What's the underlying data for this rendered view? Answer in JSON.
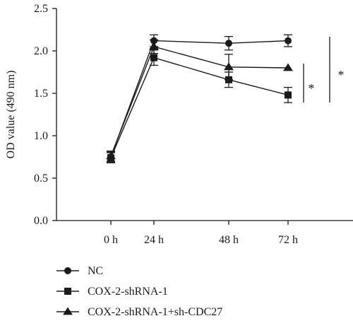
{
  "chart_data": {
    "type": "line",
    "categories": [
      "0 h",
      "24 h",
      "48 h",
      "72 h"
    ],
    "ylabel": "OD value (490 nm)",
    "ylim": [
      0.0,
      2.5
    ],
    "yticks": [
      "0.0",
      "0.5",
      "1.0",
      "1.5",
      "2.0",
      "2.5"
    ],
    "grid": false,
    "legend_position": "bottom-left",
    "series": [
      {
        "name": "NC",
        "marker": "circle",
        "values": [
          0.75,
          2.12,
          2.09,
          2.12
        ],
        "errors": [
          0.06,
          0.07,
          0.08,
          0.07
        ]
      },
      {
        "name": "COX-2-shRNA-1",
        "marker": "square",
        "values": [
          0.74,
          1.92,
          1.66,
          1.48
        ],
        "errors": [
          0.06,
          0.09,
          0.09,
          0.09
        ]
      },
      {
        "name": "COX-2-shRNA-1+sh-CDC27",
        "marker": "triangle",
        "values": [
          0.76,
          2.05,
          1.81,
          1.8
        ],
        "errors": [
          0.06,
          0.08,
          0.15,
          0.0
        ]
      }
    ],
    "significance": [
      {
        "label": "*",
        "between": [
          "COX-2-shRNA-1",
          "COX-2-shRNA-1+sh-CDC27"
        ],
        "at": "72 h"
      },
      {
        "label": "*",
        "between": [
          "NC",
          "COX-2-shRNA-1"
        ],
        "at": "72 h"
      }
    ],
    "colors": {
      "ink": "#1a1a1a",
      "background": "#ffffff"
    }
  }
}
